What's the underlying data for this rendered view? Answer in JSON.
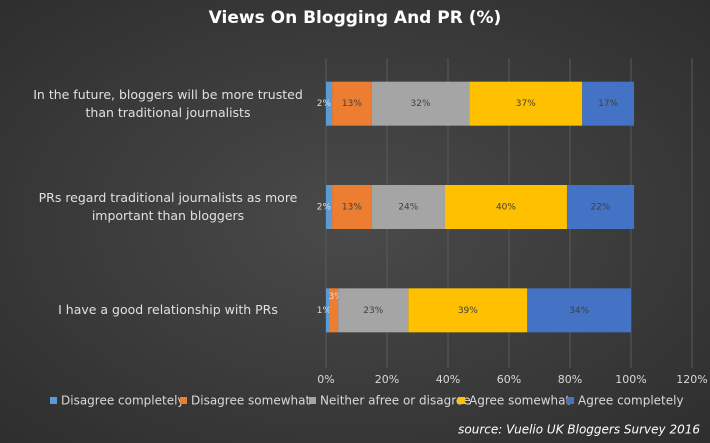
{
  "chart_data": {
    "type": "bar",
    "orientation": "horizontal",
    "stacked": true,
    "title": "Views On Blogging And PR (%)",
    "categories": [
      "In the future, bloggers will be more trusted than traditional journalists",
      "PRs regard traditional journalists as more important than bloggers",
      "I have a good relationship with PRs"
    ],
    "series": [
      {
        "name": "Disagree completely",
        "color": "#5b9bd5",
        "values": [
          2,
          2,
          1
        ],
        "value_labels": [
          "2%",
          "2%",
          "1%"
        ]
      },
      {
        "name": "Disagree somewhat",
        "color": "#ed7d31",
        "values": [
          13,
          13,
          3
        ],
        "value_labels": [
          "13%",
          "13%",
          "3%"
        ]
      },
      {
        "name": "Neither afree or disagree",
        "color": "#a5a5a5",
        "values": [
          32,
          24,
          23
        ],
        "value_labels": [
          "32%",
          "24%",
          "23%"
        ]
      },
      {
        "name": "Agree somewhat",
        "color": "#ffc000",
        "values": [
          37,
          40,
          39
        ],
        "value_labels": [
          "37%",
          "40%",
          "39%"
        ]
      },
      {
        "name": "Agree completely",
        "color": "#4472c4",
        "values": [
          17,
          22,
          34
        ],
        "value_labels": [
          "17%",
          "22%",
          "34%"
        ]
      }
    ],
    "xlim": [
      0,
      120
    ],
    "xticks": [
      {
        "value": 0,
        "label": "0%"
      },
      {
        "value": 20,
        "label": "20%"
      },
      {
        "value": 40,
        "label": "40%"
      },
      {
        "value": 60,
        "label": "60%"
      },
      {
        "value": 80,
        "label": "80%"
      },
      {
        "value": 100,
        "label": "100%"
      },
      {
        "value": 120,
        "label": "120%"
      }
    ],
    "grid": true,
    "legend": "bottom",
    "source": "source:  Vuelio UK Bloggers Survey 2016"
  }
}
